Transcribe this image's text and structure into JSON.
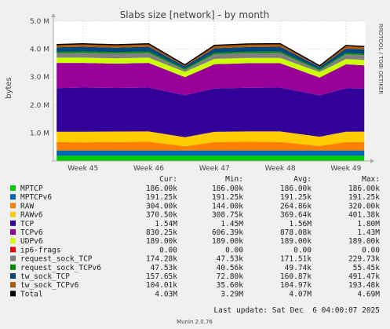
{
  "chart_data": {
    "type": "area",
    "stacked": true,
    "title": "Slabs size [network] - by month",
    "ylabel": "bytes",
    "side_label": "RRDTOOL / TOBI OETIKER",
    "footer": "Munin 2.0.76",
    "last_update": "Last update: Sat Dec  6 04:00:07 2025",
    "ylim": [
      0,
      5000000
    ],
    "yticks": [
      {
        "value": 1000000,
        "label": "1.0 M"
      },
      {
        "value": 2000000,
        "label": "2.0 M"
      },
      {
        "value": 3000000,
        "label": "3.0 M"
      },
      {
        "value": 4000000,
        "label": "4.0 M"
      },
      {
        "value": 5000000,
        "label": "5.0 M"
      }
    ],
    "xlim": [
      44.55,
      49.3
    ],
    "xticks": [
      "Week 45",
      "Week 46",
      "Week 47",
      "Week 48",
      "Week 49"
    ],
    "grid": true,
    "columns": [
      "Cur:",
      "Min:",
      "Avg:",
      "Max:"
    ],
    "colors": {
      "background": "#f0f0f0",
      "plot": "#ffffff",
      "grid": "#e6c8c8",
      "axis": "#aaaaaa"
    },
    "series": [
      {
        "name": "MPTCP",
        "color": "#00cc00",
        "cur": "186.00k",
        "min": "186.00k",
        "avg": "186.00k",
        "max": "186.00k",
        "values": [
          186000,
          186000,
          186000,
          186000,
          186000,
          186000,
          186000,
          186000,
          186000,
          186000,
          186000
        ]
      },
      {
        "name": "MPTCPv6",
        "color": "#0066b3",
        "cur": "191.25k",
        "min": "191.25k",
        "avg": "191.25k",
        "max": "191.25k",
        "values": [
          191250,
          191250,
          191250,
          191250,
          191250,
          191250,
          191250,
          191250,
          191250,
          191250,
          191250
        ]
      },
      {
        "name": "RAW",
        "color": "#ff8000",
        "cur": "304.00k",
        "min": "144.00k",
        "avg": "264.86k",
        "max": "320.00k",
        "values": [
          300000,
          290000,
          300000,
          310000,
          150000,
          300000,
          310000,
          300000,
          160000,
          300000,
          304000
        ]
      },
      {
        "name": "RAWv6",
        "color": "#ffcc00",
        "cur": "370.50k",
        "min": "308.75k",
        "avg": "369.64k",
        "max": "401.38k",
        "values": [
          370000,
          380000,
          375000,
          370000,
          320000,
          365000,
          370000,
          380000,
          330000,
          370000,
          370500
        ]
      },
      {
        "name": "TCP",
        "color": "#330099",
        "cur": "1.54M",
        "min": "1.45M",
        "avg": "1.56M",
        "max": "1.80M",
        "values": [
          1560000,
          1580000,
          1560000,
          1570000,
          1500000,
          1550000,
          1560000,
          1570000,
          1480000,
          1550000,
          1540000
        ]
      },
      {
        "name": "TCPv6",
        "color": "#990099",
        "cur": "830.25k",
        "min": "606.39k",
        "avg": "878.08k",
        "max": "1.43M",
        "values": [
          900000,
          880000,
          870000,
          880000,
          650000,
          870000,
          880000,
          870000,
          640000,
          860000,
          830250
        ]
      },
      {
        "name": "UDPv6",
        "color": "#ccff00",
        "cur": "189.00k",
        "min": "189.00k",
        "avg": "189.00k",
        "max": "189.00k",
        "values": [
          189000,
          189000,
          189000,
          189000,
          189000,
          189000,
          189000,
          189000,
          189000,
          189000,
          189000
        ]
      },
      {
        "name": "ip6-frags",
        "color": "#ff0000",
        "cur": "0.00",
        "min": "0.00",
        "avg": "0.00",
        "max": "0.00",
        "values": [
          0,
          0,
          0,
          0,
          0,
          0,
          0,
          0,
          0,
          0,
          0
        ]
      },
      {
        "name": "request_sock_TCP",
        "color": "#808080",
        "cur": "174.28k",
        "min": "47.53k",
        "avg": "171.51k",
        "max": "229.73k",
        "values": [
          160000,
          175000,
          170000,
          175000,
          70000,
          170000,
          175000,
          180000,
          60000,
          170000,
          174280
        ]
      },
      {
        "name": "request_sock_TCPv6",
        "color": "#008f00",
        "cur": "47.53k",
        "min": "40.56k",
        "avg": "49.74k",
        "max": "55.45k",
        "values": [
          48000,
          50000,
          50000,
          50000,
          42000,
          50000,
          50000,
          50000,
          42000,
          50000,
          47530
        ]
      },
      {
        "name": "tw_sock_TCP",
        "color": "#00487d",
        "cur": "157.65k",
        "min": "72.80k",
        "avg": "160.87k",
        "max": "491.47k",
        "values": [
          160000,
          165000,
          160000,
          165000,
          90000,
          160000,
          165000,
          170000,
          80000,
          160000,
          157650
        ]
      },
      {
        "name": "tw_sock_TCPv6",
        "color": "#b35a00",
        "cur": "104.01k",
        "min": "35.60k",
        "avg": "104.97k",
        "max": "193.48k",
        "values": [
          100000,
          105000,
          105000,
          105000,
          50000,
          105000,
          110000,
          110000,
          45000,
          105000,
          104010
        ]
      }
    ],
    "x": [
      44.6,
      45.0,
      45.5,
      46.0,
      46.55,
      47.0,
      47.5,
      48.0,
      48.6,
      49.0,
      49.28
    ],
    "total": {
      "name": "Total",
      "color": "#000000",
      "cur": "4.03M",
      "min": "3.29M",
      "avg": "4.07M",
      "max": "4.69M"
    }
  }
}
